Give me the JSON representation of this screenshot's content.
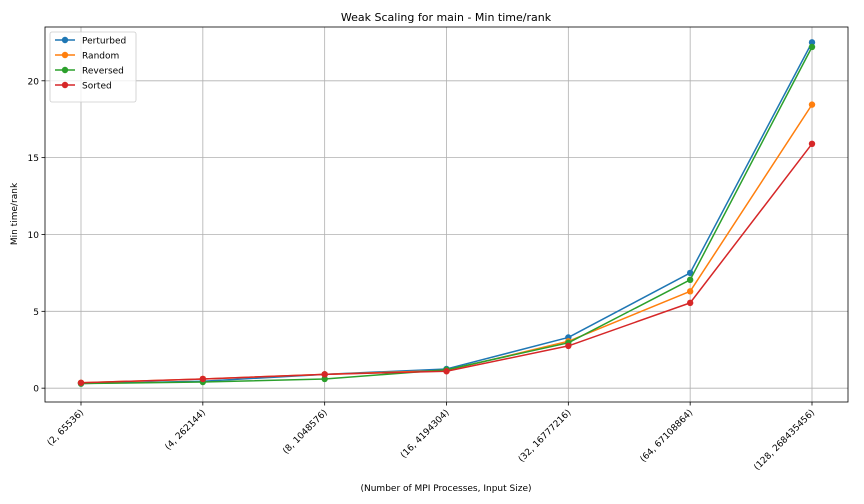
{
  "chart_data": {
    "type": "line",
    "title": "Weak Scaling for main - Min time/rank",
    "xlabel": "(Number of MPI Processes, Input Size)",
    "ylabel": "Min time/rank",
    "categories": [
      "(2, 65536)",
      "(4, 262144)",
      "(8, 1048576)",
      "(16, 4194304)",
      "(32, 16777216)",
      "(64, 67108864)",
      "(128, 268435456)"
    ],
    "ylim": [
      -0.9,
      23.5
    ],
    "yticks": [
      0,
      5,
      10,
      15,
      20
    ],
    "grid": true,
    "legend_position": "top-left",
    "series": [
      {
        "name": "Perturbed",
        "color": "#1f77b4",
        "values": [
          0.3,
          0.45,
          0.9,
          1.25,
          3.3,
          7.5,
          22.5
        ]
      },
      {
        "name": "Random",
        "color": "#ff7f0e",
        "values": [
          0.35,
          0.6,
          0.9,
          1.15,
          3.05,
          6.3,
          18.45
        ]
      },
      {
        "name": "Reversed",
        "color": "#2ca02c",
        "values": [
          0.3,
          0.4,
          0.6,
          1.2,
          2.95,
          7.05,
          22.2
        ]
      },
      {
        "name": "Sorted",
        "color": "#d62728",
        "values": [
          0.35,
          0.6,
          0.9,
          1.1,
          2.75,
          5.55,
          15.9
        ]
      }
    ]
  }
}
